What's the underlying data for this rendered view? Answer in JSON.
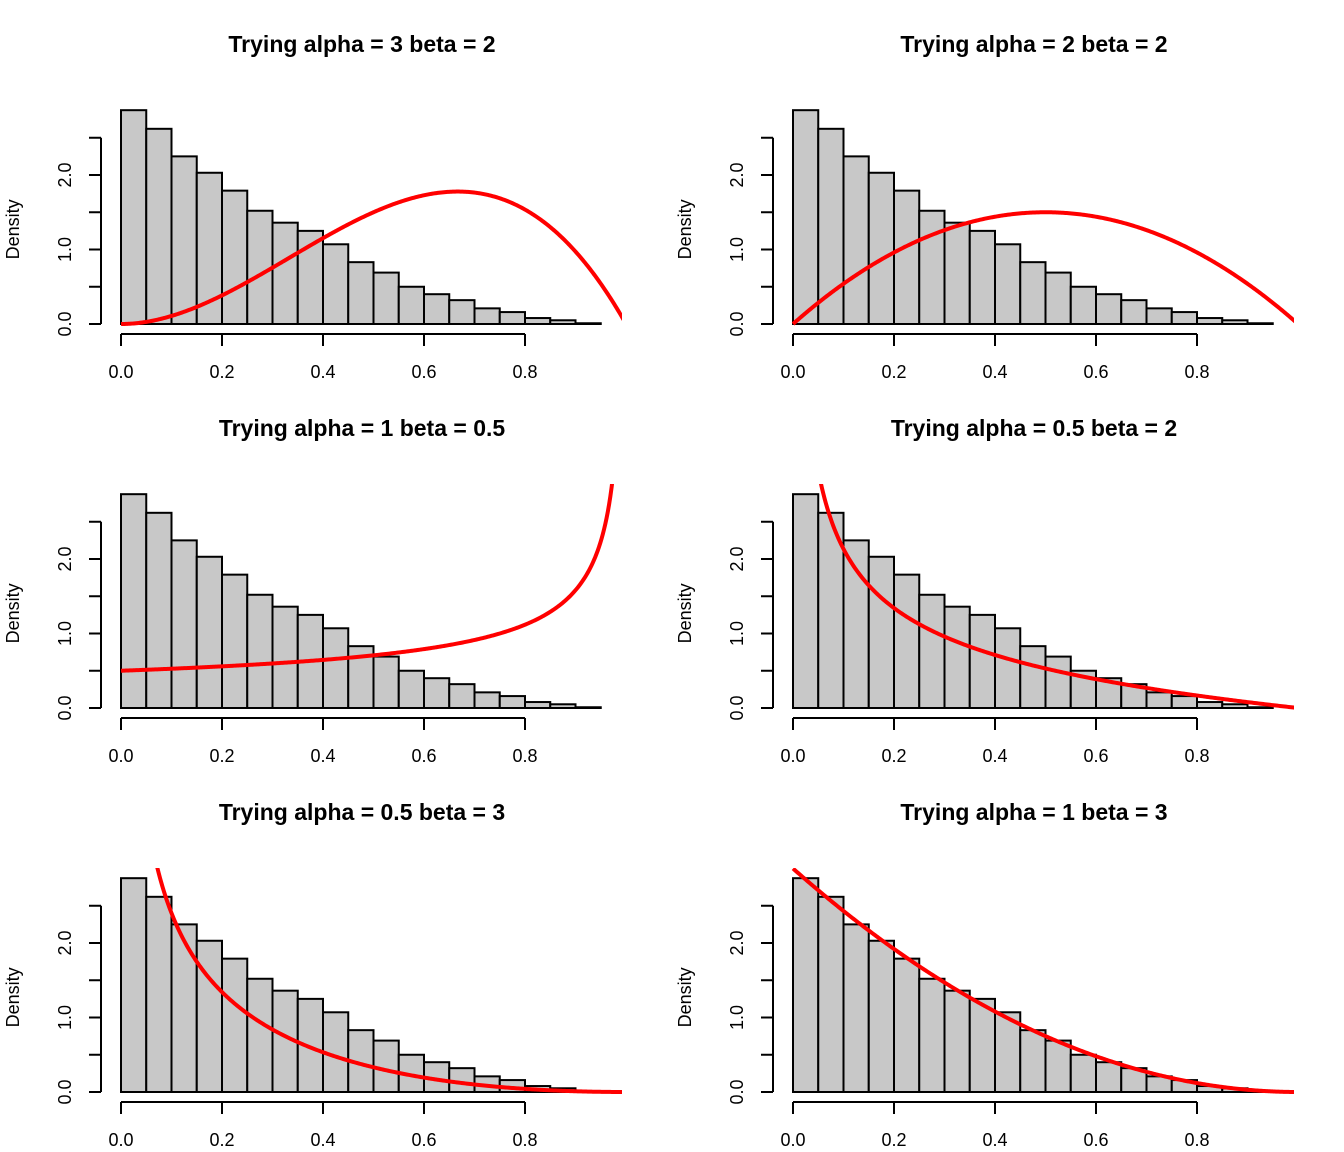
{
  "chart_data": {
    "type": "bar",
    "layout": "3x2 grid of histograms with overlaid beta density curves",
    "histogram": {
      "bin_edges": [
        0.0,
        0.05,
        0.1,
        0.15,
        0.2,
        0.25,
        0.3,
        0.35,
        0.4,
        0.45,
        0.5,
        0.55,
        0.6,
        0.65,
        0.7,
        0.75,
        0.8,
        0.85,
        0.9,
        0.95
      ],
      "density": [
        2.87,
        2.62,
        2.25,
        2.03,
        1.79,
        1.52,
        1.36,
        1.25,
        1.07,
        0.83,
        0.69,
        0.5,
        0.4,
        0.32,
        0.21,
        0.16,
        0.08,
        0.05,
        0.01
      ],
      "fill_color": "#c8c8c8",
      "border_color": "#000000"
    },
    "curve_color": "#ff0000",
    "xlim": [
      -0.04,
      0.99
    ],
    "ylim": [
      0,
      2.87
    ],
    "xticks": [
      0.0,
      0.2,
      0.4,
      0.6,
      0.8
    ],
    "xtick_labels": [
      "0.0",
      "0.2",
      "0.4",
      "0.6",
      "0.8"
    ],
    "yticks": [
      0,
      0.5,
      1.0,
      1.5,
      2.0,
      2.5
    ],
    "ytick_labels": [
      "0.0",
      "",
      "1.0",
      "",
      "2.0",
      ""
    ],
    "ylabel": "Density",
    "xlabel": "",
    "panels": [
      {
        "title": "Trying alpha =  3  beta =  2",
        "alpha": 3,
        "beta": 2
      },
      {
        "title": "Trying alpha =  2  beta =  2",
        "alpha": 2,
        "beta": 2
      },
      {
        "title": "Trying alpha =  1  beta =  0.5",
        "alpha": 1,
        "beta": 0.5
      },
      {
        "title": "Trying alpha =  0.5  beta =  2",
        "alpha": 0.5,
        "beta": 2
      },
      {
        "title": "Trying alpha =  0.5  beta =  3",
        "alpha": 0.5,
        "beta": 3
      },
      {
        "title": "Trying alpha =  1  beta =  3",
        "alpha": 1,
        "beta": 3
      }
    ]
  }
}
